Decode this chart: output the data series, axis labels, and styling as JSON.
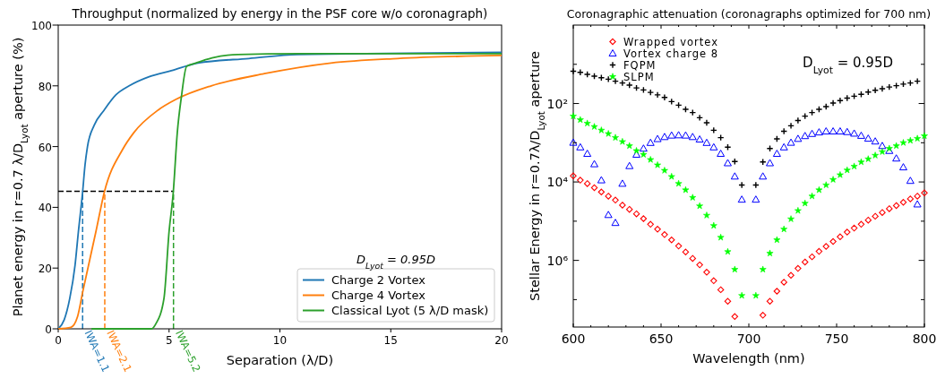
{
  "chart_data": [
    {
      "type": "line",
      "title": "Throughput (normalized by energy in the PSF core w/o coronagraph)",
      "xlabel": "Separation (λ/D)",
      "ylabel": "Planet energy in r=0.7 λ/D$_{Lyot}$ aperture (%)",
      "legend_title": "D$_{Lyot}$ = 0.95D",
      "legend": "bottom right",
      "xlim": [
        0,
        20
      ],
      "ylim": [
        0,
        100
      ],
      "xticks": [
        0,
        5,
        10,
        15,
        20
      ],
      "yticks": [
        0,
        20,
        40,
        60,
        80,
        100
      ],
      "series": [
        {
          "name": "Charge 2 Vortex",
          "color": "#1f77b4",
          "x": [
            0,
            0.27,
            0.52,
            0.76,
            0.91,
            1.1,
            1.21,
            1.32,
            1.62,
            2.07,
            2.6,
            3.2,
            4.1,
            5.1,
            6.3,
            8.6,
            10.8,
            20
          ],
          "values": [
            0,
            3,
            10,
            21,
            32,
            45,
            54,
            60,
            67,
            72,
            77,
            80,
            83,
            85,
            87.5,
            89,
            90.3,
            91
          ]
        },
        {
          "name": "Charge 4 Vortex",
          "color": "#ff7f0e",
          "x": [
            0,
            0.57,
            0.87,
            1.1,
            1.7,
            2.08,
            2.9,
            3.4,
            4.5,
            5.3,
            6.9,
            9.3,
            12.3,
            15.3,
            20
          ],
          "values": [
            0,
            0.5,
            4,
            12,
            32,
            45,
            59,
            64.5,
            72,
            75.5,
            80,
            84,
            87.5,
            89,
            90
          ]
        },
        {
          "name": "Classical Lyot (5 λ/D mask)",
          "color": "#2ca02c",
          "x": [
            1.5,
            4.2,
            4.4,
            4.77,
            5.0,
            5.19,
            5.37,
            5.56,
            5.79,
            6.2,
            6.94,
            8.1,
            10.8,
            20
          ],
          "values": [
            0,
            0,
            1.6,
            10,
            32,
            45,
            64.5,
            76.6,
            86.4,
            87.5,
            89.2,
            90.3,
            90.6,
            90.6
          ]
        }
      ],
      "ref_lines": [
        {
          "axis": "y",
          "value": 45.3,
          "color": "#000000",
          "line_style": "dashed"
        },
        {
          "axis": "x",
          "value": 1.1,
          "label": "IWA=1.1",
          "color": "#1f77b4",
          "line_style": "dashed"
        },
        {
          "axis": "x",
          "value": 2.1,
          "label": "IWA=2.1",
          "color": "#ff7f0e",
          "line_style": "dashed"
        },
        {
          "axis": "x",
          "value": 5.2,
          "label": "IWA=5.2",
          "color": "#2ca02c",
          "line_style": "dashed"
        }
      ]
    },
    {
      "type": "scatter",
      "title": "Coronagraphic attenuation (coronagraphs optimized for 700 nm)",
      "xlabel": "Wavelength (nm)",
      "ylabel": "Stellar Energy in r=0.7λ/D$_{Lyot}$ aperture",
      "log": "y",
      "legend": "top left",
      "annotations": [
        "D$_{Lyot}$ = 0.95D"
      ],
      "xlim": [
        600,
        800
      ],
      "ylim": [
        50000000.0,
        1
      ],
      "xticks": [
        600,
        {
          "value": 610,
          "label": null
        },
        {
          "value": 620,
          "label": null
        },
        {
          "value": 630,
          "label": null
        },
        {
          "value": 640,
          "label": null
        },
        650,
        {
          "value": 660,
          "label": null
        },
        {
          "value": 670,
          "label": null
        },
        {
          "value": 680,
          "label": null
        },
        {
          "value": 690,
          "label": null
        },
        700,
        {
          "value": 710,
          "label": null
        },
        {
          "value": 720,
          "label": null
        },
        {
          "value": 730,
          "label": null
        },
        {
          "value": 740,
          "label": null
        },
        750,
        {
          "value": 760,
          "label": null
        },
        {
          "value": 770,
          "label": null
        },
        {
          "value": 780,
          "label": null
        },
        {
          "value": 790,
          "label": null
        },
        800
      ],
      "yticks": [
        {
          "value": 10,
          "label": null
        },
        {
          "value": 100,
          "label": "10²"
        },
        {
          "value": 1000,
          "label": null
        },
        {
          "value": 10000,
          "label": "10⁴"
        },
        {
          "value": 100000,
          "label": null
        },
        {
          "value": 1000000,
          "label": "10⁶"
        },
        {
          "value": 10000000,
          "label": null
        }
      ],
      "x": [
        600,
        604,
        608,
        612,
        616,
        620,
        624,
        628,
        632,
        636,
        640,
        644,
        648,
        652,
        656,
        660,
        664,
        668,
        672,
        676,
        680,
        684,
        688,
        692,
        696,
        704,
        708,
        712,
        716,
        720,
        724,
        728,
        732,
        736,
        740,
        744,
        748,
        752,
        756,
        760,
        764,
        768,
        772,
        776,
        780,
        784,
        788,
        792,
        796,
        800
      ],
      "series": [
        {
          "name": "Wrapped vortex",
          "color": "#ff0000",
          "marker": "diamond",
          "values": [
            7000,
            9000,
            11000,
            14000,
            18000,
            23000,
            29000,
            39000,
            50000,
            65000,
            86000,
            120000.0,
            160000.0,
            220000.0,
            300000.0,
            430000.0,
            610000.0,
            890000.0,
            1300000.0,
            2000000.0,
            3300000.0,
            5600000.0,
            11000000.0,
            27000000.0,
            null,
            null,
            25000000.0,
            11000000.0,
            6100000.0,
            3600000.0,
            2400000.0,
            1600000.0,
            1100000.0,
            810000.0,
            590000.0,
            440000.0,
            330000.0,
            250000.0,
            190000.0,
            150000.0,
            120000.0,
            94000,
            75000,
            60000,
            48000,
            40000,
            33000,
            27000,
            23000,
            19000
          ]
        },
        {
          "name": "Vortex charge 8",
          "color": "#0000ff",
          "marker": "triangle",
          "values": [
            990,
            1300,
            1900,
            3500,
            9000,
            69000,
            110000.0,
            11000,
            3900,
            2000,
            1400,
            1000,
            800,
            710,
            650,
            640,
            650,
            710,
            820,
            1000,
            1300,
            1900,
            3300,
            7200,
            28000,
            28000,
            7200,
            3300,
            1900,
            1300,
            990,
            790,
            670,
            590,
            540,
            510,
            510,
            510,
            530,
            580,
            660,
            780,
            920,
            1200,
            1600,
            2500,
            4200,
            9300,
            37000,
            null
          ]
        },
        {
          "name": "FQPM",
          "color": "#000000",
          "marker": "cross",
          "values": [
            15,
            16,
            18,
            20,
            22,
            24,
            27,
            30,
            34,
            40,
            45,
            52,
            60,
            70,
            89,
            110,
            140,
            170,
            230,
            310,
            480,
            740,
            1300,
            3000,
            12000,
            12000,
            3100,
            1400,
            800,
            510,
            370,
            270,
            210,
            170,
            140,
            120,
            97,
            84,
            73,
            65,
            58,
            51,
            46,
            42,
            38,
            35,
            32,
            30,
            27,
            null
          ]
        },
        {
          "name": "SLPM",
          "color": "#00ff00",
          "marker": "star",
          "values": [
            210,
            260,
            320,
            390,
            480,
            590,
            740,
            940,
            1200,
            1600,
            2000,
            2700,
            3700,
            5100,
            7300,
            11000,
            16000,
            25000,
            41000,
            71000,
            130000.0,
            260000.0,
            600000.0,
            1700000.0,
            7900000.0,
            7900000.0,
            1700000.0,
            660000.0,
            300000.0,
            160000.0,
            88000,
            54000,
            35000,
            23000,
            16000,
            12000,
            8700,
            6600,
            5000,
            4000,
            3100,
            2600,
            2100,
            1700,
            1400,
            1200,
            1000,
            880,
            780,
            670
          ]
        }
      ]
    }
  ]
}
